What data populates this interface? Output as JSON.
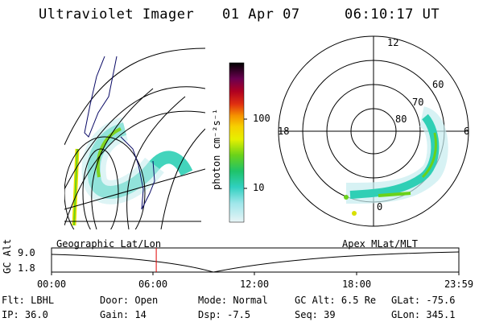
{
  "header": {
    "instrument": "Ultraviolet Imager",
    "date": "01 Apr 07",
    "time": "06:10:17 UT"
  },
  "colorbar": {
    "unit_label": "photon cm⁻²s⁻¹",
    "ticks": [
      "100",
      "10"
    ],
    "scale": "log",
    "colors": [
      "#d8f0f4",
      "#8ee0e8",
      "#2ecfc0",
      "#1fc060",
      "#6ad21a",
      "#c8e010",
      "#f6e000",
      "#f9a000",
      "#e84010",
      "#c00020",
      "#800040",
      "#3a004a",
      "#000000"
    ]
  },
  "polar_plot": {
    "local_time_labels": {
      "top": "12",
      "left": "18",
      "right": "6",
      "bottom": "0"
    },
    "latitude_labels": [
      "60",
      "70",
      "80"
    ]
  },
  "timeline": {
    "left_label": "Geographic Lat/Lon",
    "right_label": "Apex MLat/MLT",
    "axis_title": "GC Alt",
    "y_ticks": [
      "9.0",
      "1.8"
    ],
    "x_ticks": [
      "00:00",
      "06:00",
      "12:00",
      "18:00",
      "23:59"
    ],
    "current_time_fraction": 0.2571,
    "marker_color": "#e00000"
  },
  "info": {
    "flt_label": "Flt:",
    "flt_value": "LBHL",
    "ip_label": "IP:",
    "ip_value": "36.0",
    "door_label": "Door:",
    "door_value": "Open",
    "gain_label": "Gain:",
    "gain_value": "14",
    "mode_label": "Mode:",
    "mode_value": "Normal",
    "dsp_label": "Dsp:",
    "dsp_value": "-7.5",
    "gcalt_label": "GC Alt:",
    "gcalt_value": "6.5 Re",
    "seq_label": "Seq:",
    "seq_value": "39",
    "glat_label": "GLat:",
    "glat_value": "-75.6",
    "glon_label": "GLon:",
    "glon_value": "345.1"
  }
}
